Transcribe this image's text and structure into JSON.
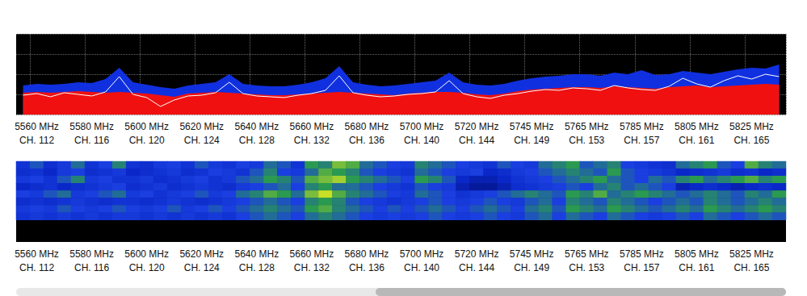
{
  "chart_data": [
    {
      "type": "line",
      "categories": [
        null,
        "5560 MHz\nCH. 112",
        null,
        null,
        null,
        "5580 MHz\nCH. 116",
        null,
        null,
        null,
        "5600 MHz\nCH. 120",
        null,
        null,
        null,
        "5620 MHz\nCH. 124",
        null,
        null,
        null,
        "5640 MHz\nCH. 128",
        null,
        null,
        null,
        "5660 MHz\nCH. 132",
        null,
        null,
        null,
        "5680 MHz\nCH. 136",
        null,
        null,
        null,
        "5700 MHz\nCH. 140",
        null,
        null,
        null,
        "5720 MHz\nCH. 144",
        null,
        null,
        null,
        "5745 MHz\nCH. 149",
        null,
        null,
        null,
        "5765 MHz\nCH. 153",
        null,
        null,
        null,
        "5785 MHz\nCH. 157",
        null,
        null,
        null,
        "5805 MHz\nCH. 161",
        null,
        null,
        null,
        "5825 MHz\nCH. 165",
        null,
        null
      ],
      "series": [
        {
          "type": "area",
          "color": "#1030e0",
          "values": [
            36,
            38,
            37,
            38,
            40,
            39,
            44,
            58,
            40,
            37,
            34,
            32,
            36,
            38,
            40,
            50,
            38,
            36,
            35,
            35,
            37,
            40,
            45,
            60,
            40,
            37,
            35,
            36,
            38,
            40,
            42,
            52,
            40,
            37,
            36,
            38,
            42,
            45,
            47,
            48,
            50,
            50,
            48,
            52,
            50,
            55,
            49,
            50,
            54,
            52,
            50,
            53,
            56,
            58,
            57,
            62
          ]
        },
        {
          "type": "area",
          "color": "#f01010",
          "values": [
            27,
            28,
            27,
            28,
            29,
            28,
            27,
            28,
            27,
            26,
            24,
            22,
            26,
            27,
            28,
            27,
            26,
            25,
            24,
            24,
            25,
            26,
            27,
            28,
            27,
            26,
            25,
            24,
            26,
            27,
            28,
            28,
            27,
            25,
            24,
            26,
            29,
            31,
            32,
            33,
            34,
            34,
            33,
            35,
            34,
            33,
            32,
            34,
            35,
            36,
            34,
            35,
            36,
            37,
            38,
            37
          ]
        },
        {
          "type": "line",
          "color": "#ffffff",
          "values": [
            24,
            26,
            22,
            27,
            25,
            23,
            28,
            47,
            25,
            21,
            10,
            18,
            23,
            24,
            27,
            40,
            26,
            23,
            22,
            21,
            24,
            26,
            30,
            48,
            27,
            24,
            22,
            23,
            25,
            26,
            28,
            42,
            26,
            22,
            20,
            24,
            26,
            29,
            31,
            30,
            33,
            32,
            30,
            36,
            33,
            31,
            30,
            35,
            45,
            38,
            34,
            42,
            48,
            44,
            50,
            47
          ]
        }
      ],
      "ylim": [
        0,
        100
      ],
      "yticks": [
        0,
        25,
        50,
        75,
        100
      ],
      "grid": true,
      "tick_labels": "x"
    },
    {
      "type": "heatmap",
      "categories": [
        null,
        "5560 MHz\nCH. 112",
        null,
        null,
        null,
        "5580 MHz\nCH. 116",
        null,
        null,
        null,
        "5600 MHz\nCH. 120",
        null,
        null,
        null,
        "5620 MHz\nCH. 124",
        null,
        null,
        null,
        "5640 MHz\nCH. 128",
        null,
        null,
        null,
        "5660 MHz\nCH. 132",
        null,
        null,
        null,
        "5680 MHz\nCH. 136",
        null,
        null,
        null,
        "5700 MHz\nCH. 140",
        null,
        null,
        null,
        "5720 MHz\nCH. 144",
        null,
        null,
        null,
        "5745 MHz\nCH. 149",
        null,
        null,
        null,
        "5765 MHz\nCH. 153",
        null,
        null,
        null,
        "5785 MHz\nCH. 157",
        null,
        null,
        null,
        "5805 MHz\nCH. 161",
        null,
        null,
        null,
        "5825 MHz\nCH. 165",
        null,
        null
      ],
      "cells": [
        [
          30,
          45,
          25,
          35,
          50,
          30,
          40,
          55,
          30,
          25,
          35,
          40,
          30,
          45,
          35,
          30,
          40,
          35,
          50,
          45,
          30,
          60,
          55,
          70,
          65,
          50,
          45,
          40,
          35,
          55,
          50,
          45,
          40,
          35,
          30,
          45,
          40,
          35,
          50,
          55,
          60,
          45,
          50,
          55,
          40,
          35,
          30,
          25,
          50,
          55,
          60,
          45,
          40,
          65,
          55,
          50
        ],
        [
          25,
          30,
          20,
          35,
          40,
          25,
          30,
          35,
          20,
          25,
          30,
          35,
          25,
          30,
          40,
          35,
          30,
          45,
          55,
          40,
          35,
          50,
          65,
          60,
          55,
          45,
          40,
          35,
          30,
          50,
          45,
          40,
          35,
          40,
          20,
          25,
          35,
          40,
          45,
          50,
          55,
          50,
          45,
          60,
          45,
          40,
          35,
          30,
          20,
          25,
          30,
          35,
          25,
          30,
          20,
          25
        ],
        [
          35,
          40,
          30,
          45,
          55,
          35,
          40,
          30,
          30,
          35,
          25,
          30,
          35,
          40,
          30,
          35,
          45,
          50,
          60,
          55,
          45,
          65,
          70,
          75,
          60,
          55,
          50,
          45,
          40,
          60,
          55,
          45,
          20,
          15,
          15,
          20,
          30,
          35,
          40,
          45,
          50,
          55,
          60,
          50,
          45,
          40,
          50,
          45,
          55,
          60,
          50,
          55,
          60,
          65,
          55,
          60
        ],
        [
          20,
          25,
          30,
          20,
          25,
          30,
          35,
          40,
          25,
          30,
          35,
          25,
          30,
          35,
          30,
          25,
          35,
          40,
          45,
          50,
          40,
          55,
          60,
          50,
          50,
          45,
          40,
          35,
          30,
          45,
          40,
          35,
          15,
          10,
          10,
          15,
          25,
          30,
          35,
          40,
          45,
          40,
          50,
          55,
          45,
          50,
          45,
          40,
          15,
          20,
          25,
          20,
          15,
          20,
          25,
          20
        ],
        [
          40,
          35,
          45,
          50,
          35,
          40,
          45,
          50,
          35,
          40,
          30,
          35,
          40,
          45,
          35,
          40,
          50,
          55,
          65,
          60,
          50,
          70,
          80,
          65,
          55,
          50,
          45,
          40,
          35,
          50,
          45,
          40,
          30,
          35,
          40,
          45,
          50,
          55,
          50,
          45,
          60,
          55,
          65,
          50,
          55,
          60,
          55,
          50,
          45,
          50,
          55,
          50,
          45,
          55,
          50,
          60
        ],
        [
          25,
          30,
          25,
          30,
          35,
          30,
          25,
          30,
          30,
          25,
          30,
          35,
          30,
          25,
          30,
          35,
          40,
          45,
          50,
          45,
          40,
          55,
          60,
          55,
          45,
          40,
          35,
          30,
          35,
          40,
          45,
          40,
          35,
          40,
          45,
          40,
          35,
          45,
          50,
          40,
          55,
          50,
          45,
          55,
          50,
          45,
          40,
          45,
          50,
          45,
          55,
          50,
          45,
          50,
          55,
          50
        ],
        [
          35,
          40,
          35,
          45,
          40,
          35,
          40,
          45,
          40,
          35,
          40,
          45,
          35,
          40,
          45,
          40,
          45,
          50,
          55,
          50,
          45,
          60,
          65,
          55,
          50,
          45,
          40,
          45,
          40,
          45,
          50,
          45,
          40,
          45,
          50,
          45,
          40,
          50,
          55,
          45,
          60,
          55,
          50,
          60,
          55,
          50,
          45,
          50,
          55,
          50,
          60,
          55,
          50,
          55,
          60,
          55
        ],
        [
          30,
          35,
          30,
          35,
          30,
          35,
          30,
          35,
          35,
          30,
          35,
          30,
          35,
          30,
          35,
          30,
          40,
          45,
          50,
          45,
          40,
          50,
          55,
          50,
          45,
          40,
          35,
          40,
          35,
          40,
          45,
          40,
          35,
          40,
          45,
          40,
          35,
          45,
          50,
          40,
          50,
          45,
          40,
          50,
          45,
          40,
          35,
          40,
          45,
          40,
          50,
          45,
          40,
          45,
          50,
          45
        ],
        [
          null,
          null,
          null,
          null,
          null,
          null,
          null,
          null,
          null,
          null,
          null,
          null,
          null,
          null,
          null,
          null,
          null,
          null,
          null,
          null,
          null,
          null,
          null,
          null,
          null,
          null,
          null,
          null,
          null,
          null,
          null,
          null,
          null,
          null,
          null,
          null,
          null,
          null,
          null,
          null,
          null,
          null,
          null,
          null,
          null,
          null,
          null,
          null,
          null,
          null,
          null,
          null,
          null,
          null,
          null,
          null
        ],
        [
          null,
          null,
          null,
          null,
          null,
          null,
          null,
          null,
          null,
          null,
          null,
          null,
          null,
          null,
          null,
          null,
          null,
          null,
          null,
          null,
          null,
          null,
          null,
          null,
          null,
          null,
          null,
          null,
          null,
          null,
          null,
          null,
          null,
          null,
          null,
          null,
          null,
          null,
          null,
          null,
          null,
          null,
          null,
          null,
          null,
          null,
          null,
          null,
          null,
          null,
          null,
          null,
          null,
          null,
          null,
          null
        ],
        [
          null,
          null,
          null,
          null,
          null,
          null,
          null,
          null,
          null,
          null,
          null,
          null,
          null,
          null,
          null,
          null,
          null,
          null,
          null,
          null,
          null,
          null,
          null,
          null,
          null,
          null,
          null,
          null,
          null,
          null,
          null,
          null,
          null,
          null,
          null,
          null,
          null,
          null,
          null,
          null,
          null,
          null,
          null,
          null,
          null,
          null,
          null,
          null,
          null,
          null,
          null,
          null,
          null,
          null,
          null,
          null
        ]
      ],
      "zlim": [
        0,
        100
      ],
      "grid": false,
      "tick_labels": "x"
    }
  ]
}
